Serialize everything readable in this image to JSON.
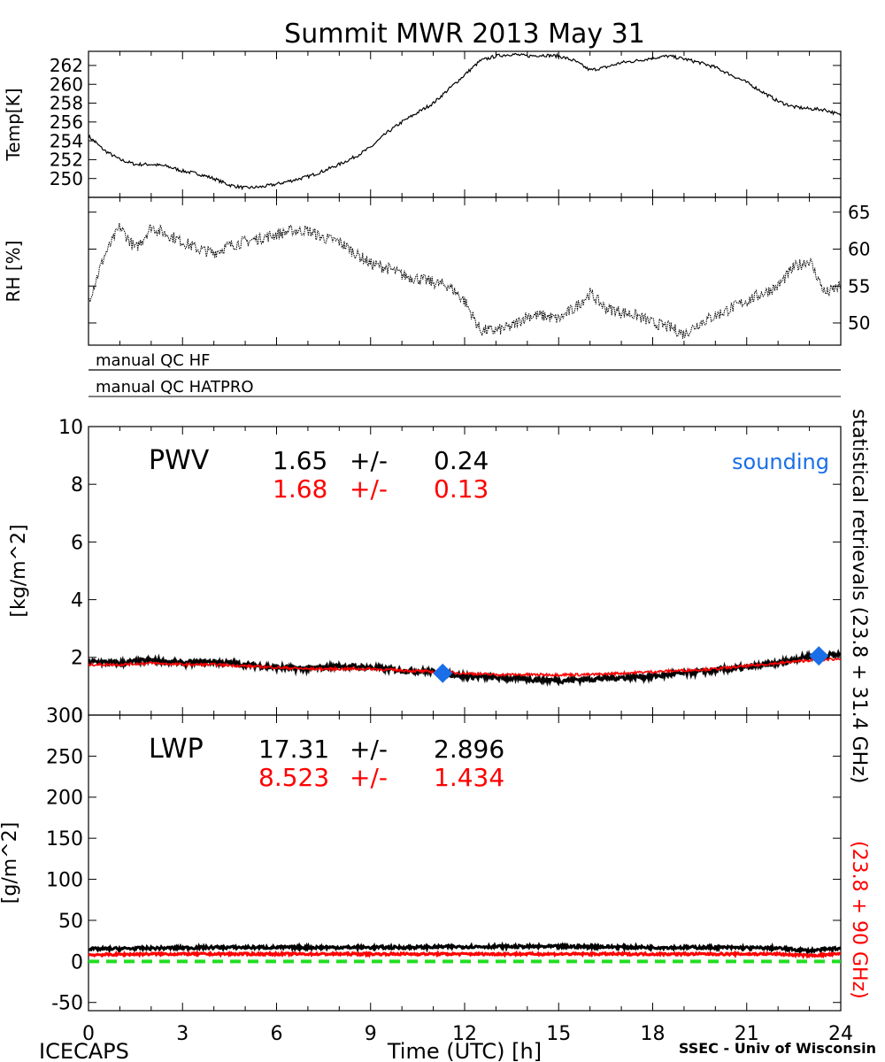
{
  "title": "Summit MWR 2013 May 31",
  "footer": {
    "left": "ICECAPS",
    "center": "Time (UTC) [h]",
    "right": "SSEC - Univ of Wisconsin"
  },
  "side_label": {
    "black": "statistical retrievals (23.8 + 31.4 GHz)",
    "red": "(23.8 + 90 GHz)"
  },
  "qc_flags": [
    "manual QC HF",
    "manual QC HATPRO"
  ],
  "colors": {
    "black_series": "#000000",
    "red_series": "#ff0000",
    "sounding": "#1a6fe8",
    "zero_line": "#22dd22"
  },
  "chart_data": [
    {
      "type": "line",
      "panel": "temperature",
      "ylabel": "Temp[K]",
      "ylim": [
        248,
        263.5
      ],
      "yticks": [
        250,
        252,
        254,
        256,
        258,
        260,
        262
      ],
      "xlim": [
        0,
        24
      ],
      "series": [
        {
          "color": "#000000",
          "x": [
            0,
            0.5,
            1,
            1.5,
            2,
            2.5,
            3,
            3.5,
            4,
            4.5,
            5,
            5.5,
            6,
            6.5,
            7,
            7.5,
            8,
            8.5,
            9,
            9.5,
            10,
            10.5,
            11,
            11.5,
            12,
            12.5,
            13,
            13.5,
            14,
            14.5,
            15,
            15.5,
            16,
            16.5,
            17,
            17.5,
            18,
            18.5,
            19,
            19.5,
            20,
            20.5,
            21,
            21.5,
            22,
            22.5,
            23,
            23.5,
            24
          ],
          "y": [
            254.5,
            253,
            252,
            251.5,
            251.5,
            251.3,
            250.8,
            250.5,
            250,
            249.3,
            249,
            249.1,
            249.4,
            249.8,
            250.2,
            250.8,
            251.5,
            252.3,
            253.3,
            254.8,
            256,
            257,
            258,
            259.5,
            261,
            262.5,
            263,
            263.2,
            263,
            263.1,
            263,
            262.5,
            261.5,
            261.8,
            262.3,
            262.5,
            262.8,
            263,
            262.7,
            262.3,
            261.8,
            261,
            260.2,
            259.2,
            258.2,
            257.6,
            257.4,
            257.3,
            256.7
          ]
        }
      ]
    },
    {
      "type": "line",
      "panel": "relative-humidity",
      "ylabel": "RH [%]",
      "ylim": [
        47,
        67
      ],
      "yticks": [
        50,
        55,
        60,
        65
      ],
      "xlim": [
        0,
        24
      ],
      "series": [
        {
          "color": "#000000",
          "x": [
            0,
            0.5,
            1,
            1.5,
            2,
            2.5,
            3,
            3.5,
            4,
            4.5,
            5,
            5.5,
            6,
            6.5,
            7,
            7.5,
            8,
            8.5,
            9,
            9.5,
            10,
            10.5,
            11,
            11.5,
            12,
            12.5,
            13,
            13.5,
            14,
            14.5,
            15,
            15.5,
            16,
            16.5,
            17,
            17.5,
            18,
            18.5,
            19,
            19.5,
            20,
            20.5,
            21,
            21.5,
            22,
            22.5,
            23,
            23.5,
            24
          ],
          "y": [
            53,
            59,
            63,
            60,
            63,
            62,
            61,
            60,
            59.5,
            60.5,
            61,
            61.5,
            62,
            62.5,
            62.5,
            61.5,
            61,
            59.5,
            58,
            57.5,
            56.5,
            56,
            55.5,
            55,
            53,
            49,
            49,
            49.5,
            51,
            51,
            50.5,
            52,
            54,
            52,
            51.5,
            51,
            50,
            49.5,
            48.5,
            50,
            51,
            52,
            53,
            54,
            55,
            57.5,
            58.5,
            54,
            55
          ]
        }
      ]
    },
    {
      "type": "line",
      "panel": "pwv",
      "ylabel": "[kg/m^2]",
      "ylim": [
        0,
        10
      ],
      "yticks": [
        0,
        2,
        4,
        6,
        8,
        10
      ],
      "xlim": [
        0,
        24
      ],
      "annotation": {
        "label": "PWV",
        "stats": [
          {
            "color": "#000000",
            "mean": "1.65",
            "pm": "+/-",
            "std": "0.24"
          },
          {
            "color": "#ff0000",
            "mean": "1.68",
            "pm": "+/-",
            "std": "0.13"
          }
        ]
      },
      "legend": {
        "label": "sounding",
        "placement": "top-right"
      },
      "series": [
        {
          "color": "#000000",
          "x": [
            0,
            1,
            2,
            3,
            4,
            5,
            6,
            7,
            8,
            9,
            10,
            11,
            12,
            13,
            14,
            15,
            16,
            17,
            18,
            19,
            20,
            21,
            22,
            23,
            24
          ],
          "y": [
            1.85,
            1.8,
            1.9,
            1.8,
            1.85,
            1.75,
            1.65,
            1.6,
            1.7,
            1.65,
            1.55,
            1.5,
            1.35,
            1.3,
            1.25,
            1.2,
            1.25,
            1.3,
            1.35,
            1.45,
            1.55,
            1.65,
            1.8,
            2.05,
            2.1
          ]
        },
        {
          "color": "#ff0000",
          "x": [
            0,
            1,
            2,
            3,
            4,
            5,
            6,
            7,
            8,
            9,
            10,
            11,
            12,
            13,
            14,
            15,
            16,
            17,
            18,
            19,
            20,
            21,
            22,
            23,
            24
          ],
          "y": [
            1.75,
            1.75,
            1.8,
            1.75,
            1.75,
            1.7,
            1.65,
            1.6,
            1.6,
            1.6,
            1.55,
            1.5,
            1.45,
            1.4,
            1.4,
            1.4,
            1.4,
            1.45,
            1.5,
            1.55,
            1.6,
            1.7,
            1.8,
            1.9,
            1.95
          ]
        },
        {
          "color": "#1a6fe8",
          "name": "sounding",
          "marker": "diamond",
          "x": [
            11.3,
            23.3
          ],
          "y": [
            1.45,
            2.05
          ]
        }
      ]
    },
    {
      "type": "line",
      "panel": "lwp",
      "ylabel": "[g/m^2]",
      "ylim": [
        -60,
        300
      ],
      "yticks": [
        -50,
        0,
        50,
        100,
        150,
        200,
        250,
        300
      ],
      "xlim": [
        0,
        24
      ],
      "xticks": [
        0,
        3,
        6,
        9,
        12,
        15,
        18,
        21,
        24
      ],
      "xlabel": "Time (UTC) [h]",
      "annotation": {
        "label": "LWP",
        "stats": [
          {
            "color": "#000000",
            "mean": "17.31",
            "pm": "+/-",
            "std": "2.896"
          },
          {
            "color": "#ff0000",
            "mean": "8.523",
            "pm": "+/-",
            "std": "1.434"
          }
        ]
      },
      "series": [
        {
          "color": "#000000",
          "x": [
            0,
            2,
            4,
            6,
            8,
            10,
            12,
            14,
            16,
            18,
            20,
            22,
            23,
            24
          ],
          "y": [
            15,
            16,
            17,
            17,
            17,
            17,
            18,
            18,
            18,
            17,
            17,
            16,
            13,
            16
          ]
        },
        {
          "color": "#ff0000",
          "x": [
            0,
            2,
            4,
            6,
            8,
            10,
            12,
            14,
            16,
            18,
            20,
            22,
            23,
            24
          ],
          "y": [
            8,
            9,
            9,
            9,
            9,
            9,
            9,
            9,
            9,
            9,
            9,
            9,
            7,
            9
          ]
        },
        {
          "color": "#22dd22",
          "style": "dashed",
          "x": [
            0,
            24
          ],
          "y": [
            0,
            0
          ]
        }
      ]
    }
  ]
}
